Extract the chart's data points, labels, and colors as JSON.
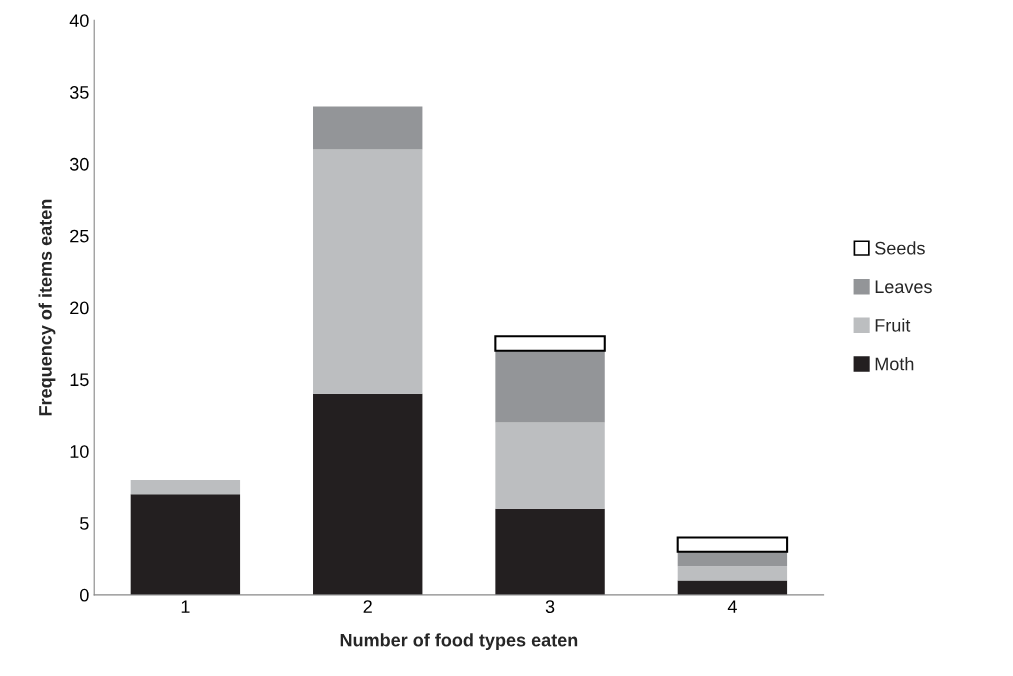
{
  "chart_data": {
    "type": "bar",
    "stacked": true,
    "xlabel": "Number of food types eaten",
    "ylabel": "Frequency of items eaten",
    "categories": [
      "1",
      "2",
      "3",
      "4"
    ],
    "series": [
      {
        "name": "Moth",
        "color": "#231f20",
        "values": [
          7,
          14,
          6,
          1
        ]
      },
      {
        "name": "Fruit",
        "color": "#bcbec0",
        "values": [
          1,
          17,
          6,
          1
        ]
      },
      {
        "name": "Leaves",
        "color": "#939598",
        "values": [
          null,
          3,
          5,
          1
        ]
      },
      {
        "name": "Seeds",
        "color": "#ffffff",
        "values": [
          null,
          null,
          1,
          1
        ]
      }
    ],
    "ylim": [
      0,
      40
    ],
    "yticks": [
      0,
      5,
      10,
      15,
      20,
      25,
      30,
      35,
      40
    ],
    "grid": false,
    "legend": "right"
  }
}
